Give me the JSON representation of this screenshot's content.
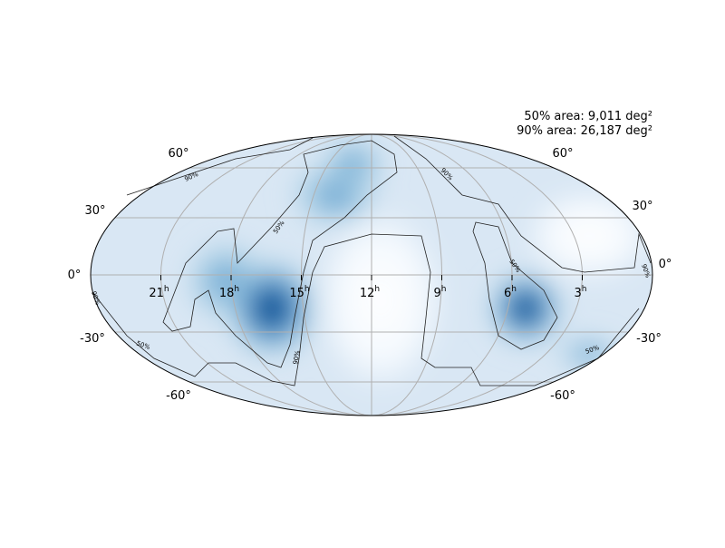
{
  "annotations": {
    "area_50": "50% area: 9,011 deg²",
    "area_90": "90% area: 26,187 deg²"
  },
  "ra_ticks": [
    {
      "hours": "21",
      "unit": "h"
    },
    {
      "hours": "18",
      "unit": "h"
    },
    {
      "hours": "15",
      "unit": "h"
    },
    {
      "hours": "12",
      "unit": "h"
    },
    {
      "hours": "9",
      "unit": "h"
    },
    {
      "hours": "6",
      "unit": "h"
    },
    {
      "hours": "3",
      "unit": "h"
    }
  ],
  "dec_ticks_left": [
    "60°",
    "30°",
    "0°",
    "-30°",
    "-60°"
  ],
  "dec_ticks_right": [
    "60°",
    "30°",
    "0°",
    "-30°",
    "-60°"
  ],
  "contour_labels": [
    "90%",
    "50%",
    "90%",
    "50%",
    "90%",
    "90%",
    "50%",
    "90%",
    "50%"
  ]
}
